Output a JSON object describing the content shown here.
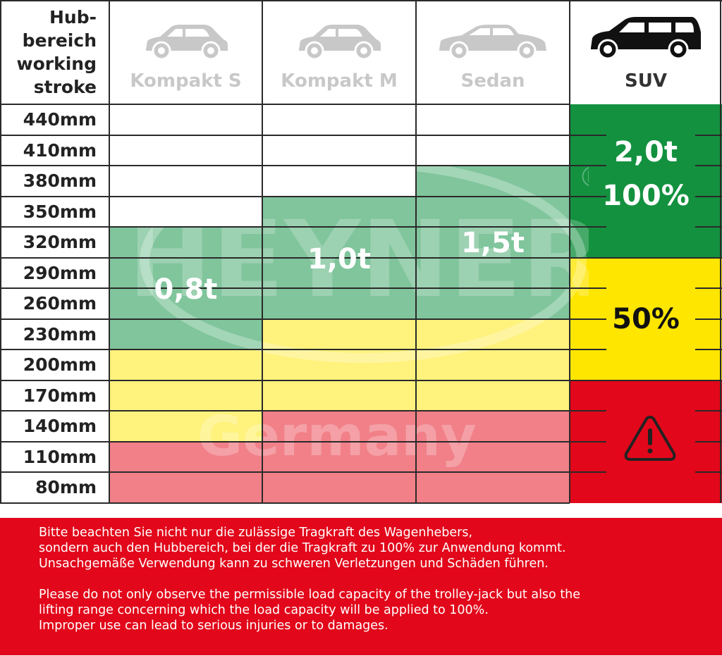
{
  "header": {
    "corner_label": [
      "Hub-",
      "bereich",
      "working",
      "stroke"
    ],
    "columns": [
      {
        "label": "Kompakt S",
        "icon": "hatchback-car-icon",
        "active": false
      },
      {
        "label": "Kompakt M",
        "icon": "hatchback-car-icon",
        "active": false
      },
      {
        "label": "Sedan",
        "icon": "sedan-car-icon",
        "active": false
      },
      {
        "label": "SUV",
        "icon": "suv-car-icon",
        "active": true
      }
    ]
  },
  "rows": [
    "440mm",
    "410mm",
    "380mm",
    "350mm",
    "320mm",
    "290mm",
    "260mm",
    "230mm",
    "200mm",
    "170mm",
    "140mm",
    "110mm",
    "80mm"
  ],
  "cells": [
    [
      "white",
      "white",
      "white",
      "white",
      "green",
      "green",
      "green",
      "green",
      "yellow",
      "yellow",
      "yellow",
      "red",
      "red"
    ],
    [
      "white",
      "white",
      "white",
      "green",
      "green",
      "green",
      "green",
      "yellow",
      "yellow",
      "yellow",
      "red",
      "red",
      "red"
    ],
    [
      "white",
      "white",
      "green",
      "green",
      "green",
      "green",
      "green",
      "yellow",
      "yellow",
      "yellow",
      "red",
      "red",
      "red"
    ],
    [
      "green",
      "green",
      "green",
      "green",
      "green",
      "yellow",
      "yellow",
      "yellow",
      "yellow",
      "red",
      "red",
      "red",
      "red"
    ]
  ],
  "capacities": [
    "0,8t",
    "1,0t",
    "1,5t"
  ],
  "suv": {
    "capacity": "2,0t",
    "full_percent": "100%",
    "half_percent": "50%",
    "warning_icon": "warning-triangle-icon"
  },
  "watermark": {
    "brand": "HEYNER",
    "country": "Germany",
    "registered": "®"
  },
  "colors": {
    "light_green": "#80c59c",
    "light_yellow": "#fff27d",
    "light_red": "#f18088",
    "suv_green": "#13913f",
    "suv_yellow": "#ffe600",
    "suv_red": "#e2071a"
  },
  "note": {
    "de": "Bitte beachten Sie nicht nur die zulässige Tragkraft des Wagenhebers, sondern auch den Hubbereich, bei der die Tragkraft zu 100% zur Anwendung kommt. Unsachgemäße Verwendung kann zu schweren Verletzungen und Schäden führen.",
    "de_lines": [
      "Bitte beachten Sie nicht nur die zulässige Tragkraft des Wagenhebers,",
      "sondern auch den Hubbereich, bei der die Tragkraft zu 100% zur Anwendung kommt.",
      "Unsachgemäße Verwendung kann zu schweren Verletzungen und Schäden führen."
    ],
    "en_lines": [
      "Please do not only observe the permissible load capacity of the trolley-jack but also the",
      "lifting range concerning which the load capacity will be applied to 100%.",
      "Improper use can lead to serious injuries or to damages."
    ]
  }
}
